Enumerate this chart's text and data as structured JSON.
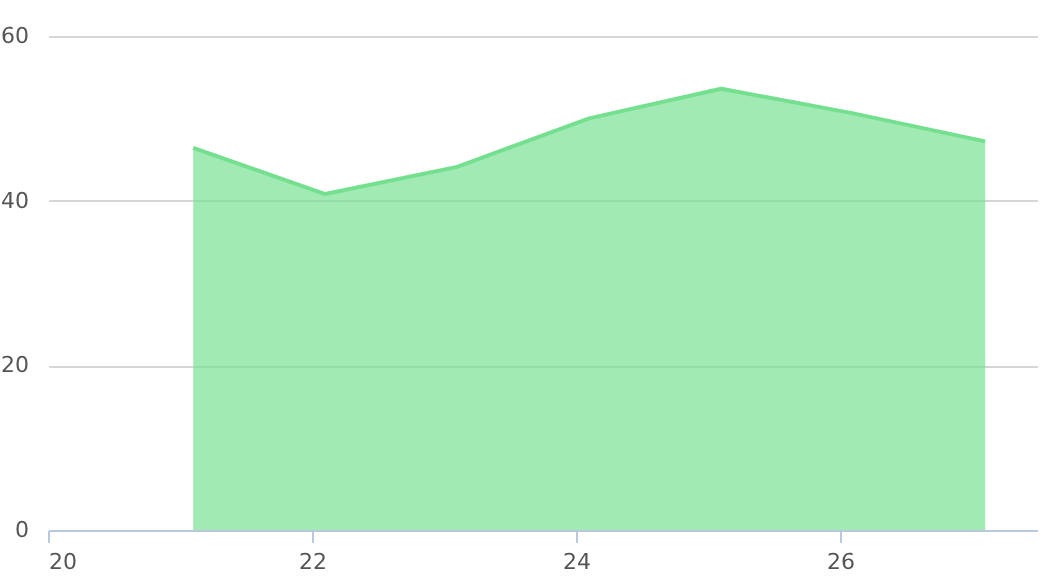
{
  "chart_data": {
    "type": "area",
    "x": [
      21.1,
      22.1,
      23.1,
      24.1,
      25.1,
      26.1,
      27.1
    ],
    "series": [
      {
        "color": "#74e08f",
        "values": [
          46.4,
          40.8,
          44.1,
          50,
          53.6,
          50.6,
          47.2
        ]
      }
    ],
    "xlim": [
      20,
      27.5
    ],
    "xticks": [
      20,
      22,
      24,
      26
    ],
    "ylim": [
      0,
      60
    ],
    "yticks": [
      0,
      20,
      40,
      60
    ],
    "grid": "y"
  }
}
